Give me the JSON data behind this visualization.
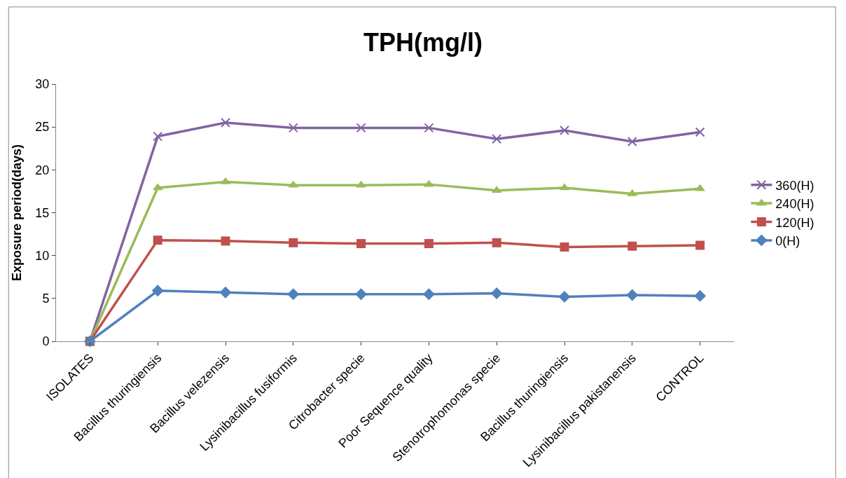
{
  "chart_data": {
    "type": "line",
    "title": "TPH(mg/l)",
    "ylabel": "Exposure period(days)",
    "categories": [
      "ISOLATES",
      "Bacillus thuringiensis",
      "Bacillus velezensis",
      "Lysinibacillus fusiformis",
      "Citrobacter specie",
      "Poor Sequence quality",
      "Stenotrophomonas specie",
      "Bacillus thuringiensis",
      "Lysinibacillus pakistanensis",
      "CONTROL"
    ],
    "series": [
      {
        "name": "0(H)",
        "color": "#4f81bd",
        "marker": "diamond",
        "values": [
          0,
          5.9,
          5.7,
          5.5,
          5.5,
          5.5,
          5.6,
          5.2,
          5.4,
          5.3
        ]
      },
      {
        "name": "120(H)",
        "color": "#c0504d",
        "marker": "square",
        "values": [
          0,
          11.8,
          11.7,
          11.5,
          11.4,
          11.4,
          11.5,
          11.0,
          11.1,
          11.2
        ]
      },
      {
        "name": "240(H)",
        "color": "#9bbb59",
        "marker": "triangle",
        "values": [
          0,
          17.9,
          18.6,
          18.2,
          18.2,
          18.3,
          17.6,
          17.9,
          17.2,
          17.8
        ]
      },
      {
        "name": "360(H)",
        "color": "#8064a2",
        "marker": "cross",
        "values": [
          0,
          23.9,
          25.5,
          24.9,
          24.9,
          24.9,
          23.6,
          24.6,
          23.3,
          24.4
        ]
      }
    ],
    "ylim": [
      0,
      30
    ],
    "yticks": [
      0,
      5,
      10,
      15,
      20,
      25,
      30
    ],
    "legend": "right",
    "line_style": "solid"
  }
}
